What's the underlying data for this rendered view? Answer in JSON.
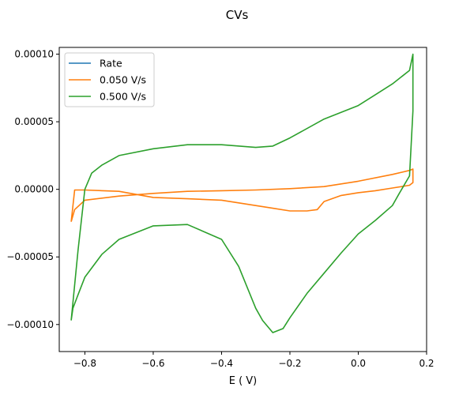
{
  "chart_data": {
    "type": "line",
    "title": "CVs",
    "xlabel": "E ( V)",
    "ylabel": "",
    "xlim": [
      -0.875,
      0.2
    ],
    "ylim": [
      -0.00012,
      0.000105
    ],
    "x_ticks": [
      -0.8,
      -0.6,
      -0.4,
      -0.2,
      0.0,
      0.2
    ],
    "x_tick_labels": [
      "−0.8",
      "−0.6",
      "−0.4",
      "−0.2",
      "0.0",
      "0.2"
    ],
    "y_ticks": [
      -0.0001,
      -5e-05,
      0,
      5e-05,
      0.0001
    ],
    "y_tick_labels": [
      "−0.00010",
      "−0.00005",
      "0.00000",
      "0.00005",
      "0.00010"
    ],
    "grid": false,
    "legend_position": "upper-left",
    "series": [
      {
        "name": "Rate",
        "color": "#1f77b4",
        "x": [],
        "y": []
      },
      {
        "name": "0.050 V/s",
        "color": "#ff7f0e",
        "x": [
          -0.84,
          -0.83,
          -0.8,
          -0.7,
          -0.6,
          -0.5,
          -0.4,
          -0.3,
          -0.2,
          -0.1,
          0.0,
          0.1,
          0.15,
          0.16,
          0.16,
          0.15,
          0.1,
          0.05,
          0.0,
          -0.05,
          -0.1,
          -0.12,
          -0.15,
          -0.2,
          -0.25,
          -0.3,
          -0.4,
          -0.5,
          -0.6,
          -0.7,
          -0.8,
          -0.83,
          -0.84
        ],
        "y": [
          -2.4e-05,
          -1.5e-05,
          -8e-06,
          -5e-06,
          -3e-06,
          -1.5e-06,
          -1e-06,
          -5e-07,
          5e-07,
          2e-06,
          6e-06,
          1.1e-05,
          1.4e-05,
          1.5e-05,
          5e-06,
          3e-06,
          1e-06,
          -1e-06,
          -2.5e-06,
          -4.5e-06,
          -9e-06,
          -1.5e-05,
          -1.6e-05,
          -1.6e-05,
          -1.4e-05,
          -1.2e-05,
          -8e-06,
          -7e-06,
          -6e-06,
          -1.5e-06,
          -5e-07,
          -5e-07,
          -2.4e-05
        ]
      },
      {
        "name": "0.500 V/s",
        "color": "#2ca02c",
        "x": [
          -0.84,
          -0.82,
          -0.8,
          -0.78,
          -0.75,
          -0.7,
          -0.6,
          -0.5,
          -0.4,
          -0.3,
          -0.25,
          -0.2,
          -0.1,
          0.0,
          0.05,
          0.1,
          0.15,
          0.16,
          0.16,
          0.15,
          0.12,
          0.1,
          0.05,
          0.0,
          -0.05,
          -0.1,
          -0.15,
          -0.2,
          -0.22,
          -0.25,
          -0.28,
          -0.3,
          -0.35,
          -0.4,
          -0.5,
          -0.6,
          -0.7,
          -0.75,
          -0.8,
          -0.82,
          -0.835,
          -0.84
        ],
        "y": [
          -9.7e-05,
          -4.5e-05,
          0.0,
          1.2e-05,
          1.8e-05,
          2.5e-05,
          3e-05,
          3.3e-05,
          3.3e-05,
          3.1e-05,
          3.2e-05,
          3.8e-05,
          5.2e-05,
          6.2e-05,
          7e-05,
          7.8e-05,
          8.8e-05,
          0.0001,
          5.8e-05,
          1e-05,
          -3e-06,
          -1.2e-05,
          -2.3e-05,
          -3.3e-05,
          -4.7e-05,
          -6.2e-05,
          -7.7e-05,
          -9.5e-05,
          -0.000103,
          -0.000106,
          -9.7e-05,
          -8.8e-05,
          -5.7e-05,
          -3.7e-05,
          -2.6e-05,
          -2.7e-05,
          -3.7e-05,
          -4.8e-05,
          -6.5e-05,
          -7.8e-05,
          -8.8e-05,
          -9.7e-05
        ]
      }
    ]
  }
}
